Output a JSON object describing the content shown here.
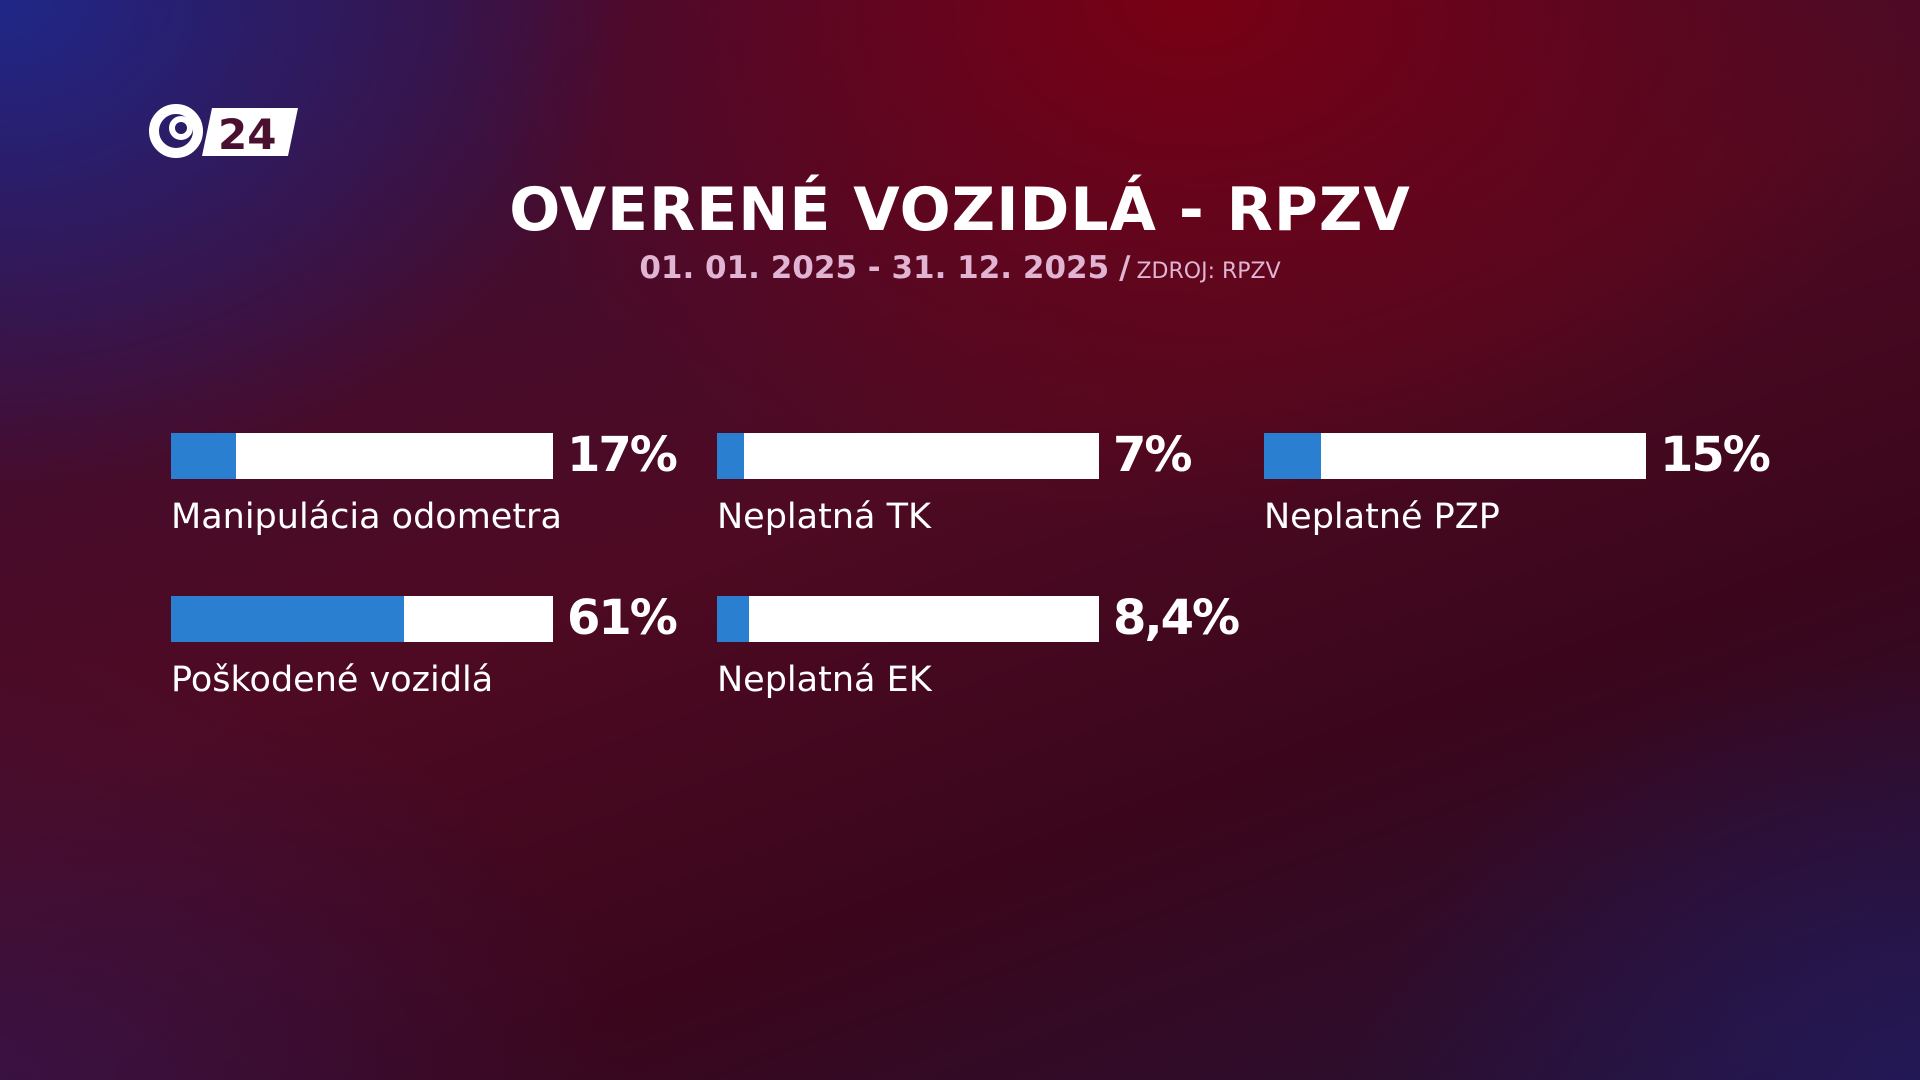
{
  "header": {
    "logo_text": "24",
    "title": "OVERENÉ VOZIDLÁ - RPZV",
    "date_range": "01. 01. 2025 - 31. 12. 2025",
    "separator": "/",
    "source": "ZDROJ: RPZV"
  },
  "colors": {
    "bar_fill": "#2a7fd0",
    "bar_track": "#ffffff"
  },
  "chart_data": {
    "type": "bar",
    "orientation": "horizontal",
    "title": "OVERENÉ VOZIDLÁ - RPZV",
    "xlim": [
      0,
      100
    ],
    "categories": [
      "Manipulácia odometra",
      "Neplatná TK",
      "Neplatné PZP",
      "Poškodené vozidlá",
      "Neplatná EK"
    ],
    "values": [
      17,
      7,
      15,
      61,
      8.4
    ],
    "value_labels": [
      "17%",
      "7%",
      "15%",
      "61%",
      "8,4%"
    ]
  }
}
